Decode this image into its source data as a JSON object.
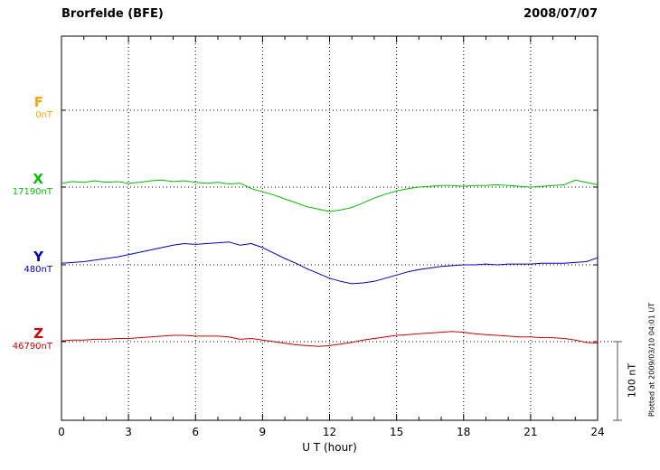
{
  "header": {
    "station": "Brorfelde (BFE)",
    "date": "2008/07/07"
  },
  "axes": {
    "xlabel": "U T (hour)"
  },
  "scale_bar": {
    "label": "100 nT"
  },
  "footer": {
    "plotted_at": "Plotted at 2009/03/10 04:01 UT"
  },
  "chart_data": {
    "type": "line",
    "title": "Brorfelde (BFE)",
    "subtitle": "2008/07/07",
    "xlabel": "U T (hour)",
    "x_range": [
      0,
      24
    ],
    "x_ticks": [
      0,
      3,
      6,
      9,
      12,
      15,
      18,
      21,
      24
    ],
    "scale_bar_nT": 100,
    "grid": "dotted",
    "series": [
      {
        "name": "F",
        "color": "#FFA500",
        "baseline_label": "0nT",
        "baseline_nT": 0,
        "x": [],
        "offsets_nT": []
      },
      {
        "name": "X",
        "color": "#00C000",
        "baseline_label": "17190nT",
        "baseline_nT": 17190,
        "x": [
          0,
          0.5,
          1,
          1.5,
          2,
          2.5,
          3,
          3.5,
          4,
          4.5,
          5,
          5.5,
          6,
          6.5,
          7,
          7.5,
          8,
          8.5,
          9,
          9.5,
          10,
          10.5,
          11,
          11.5,
          12,
          12.5,
          13,
          13.5,
          14,
          14.5,
          15,
          15.5,
          16,
          16.5,
          17,
          17.5,
          18,
          18.5,
          19,
          19.5,
          20,
          20.5,
          21,
          21.5,
          22,
          22.5,
          23,
          23.5,
          24
        ],
        "offsets_nT": [
          5,
          7,
          6,
          8,
          6,
          7,
          5,
          6,
          8,
          9,
          7,
          8,
          6,
          5,
          6,
          4,
          5,
          -2,
          -6,
          -10,
          -15,
          -20,
          -25,
          -28,
          -31,
          -29,
          -26,
          -20,
          -14,
          -9,
          -5,
          -2,
          0,
          1,
          2,
          2,
          1,
          2,
          2,
          3,
          2,
          1,
          0,
          1,
          2,
          3,
          9,
          6,
          3
        ]
      },
      {
        "name": "Y",
        "color": "#0000CC",
        "baseline_label": "480nT",
        "baseline_nT": 480,
        "x": [
          0,
          0.5,
          1,
          1.5,
          2,
          2.5,
          3,
          3.5,
          4,
          4.5,
          5,
          5.5,
          6,
          6.5,
          7,
          7.5,
          8,
          8.5,
          9,
          9.5,
          10,
          10.5,
          11,
          11.5,
          12,
          12.5,
          13,
          13.5,
          14,
          14.5,
          15,
          15.5,
          16,
          16.5,
          17,
          17.5,
          18,
          18.5,
          19,
          19.5,
          20,
          20.5,
          21,
          21.5,
          22,
          22.5,
          23,
          23.5,
          24
        ],
        "offsets_nT": [
          2,
          3,
          4,
          6,
          8,
          10,
          13,
          16,
          19,
          22,
          25,
          27,
          26,
          27,
          28,
          29,
          25,
          27,
          22,
          15,
          8,
          2,
          -5,
          -11,
          -17,
          -21,
          -24,
          -23,
          -21,
          -17,
          -13,
          -9,
          -6,
          -4,
          -2,
          -1,
          0,
          0,
          1,
          0,
          1,
          1,
          1,
          2,
          2,
          2,
          3,
          4,
          9
        ]
      },
      {
        "name": "Z",
        "color": "#D00000",
        "baseline_label": "46790nT",
        "baseline_nT": 46790,
        "x": [
          0,
          0.5,
          1,
          1.5,
          2,
          2.5,
          3,
          3.5,
          4,
          4.5,
          5,
          5.5,
          6,
          6.5,
          7,
          7.5,
          8,
          8.5,
          9,
          9.5,
          10,
          10.5,
          11,
          11.5,
          12,
          12.5,
          13,
          13.5,
          14,
          14.5,
          15,
          15.5,
          16,
          16.5,
          17,
          17.5,
          18,
          18.5,
          19,
          19.5,
          20,
          20.5,
          21,
          21.5,
          22,
          22.5,
          23,
          23.5,
          24
        ],
        "offsets_nT": [
          1,
          2,
          2,
          3,
          3,
          4,
          4,
          5,
          6,
          7,
          8,
          8,
          7,
          7,
          7,
          6,
          3,
          4,
          2,
          0,
          -2,
          -4,
          -5,
          -6,
          -5,
          -3,
          -1,
          2,
          4,
          6,
          8,
          9,
          10,
          11,
          12,
          13,
          12,
          10,
          9,
          8,
          7,
          6,
          6,
          5,
          5,
          4,
          2,
          -1,
          -2
        ]
      }
    ]
  }
}
